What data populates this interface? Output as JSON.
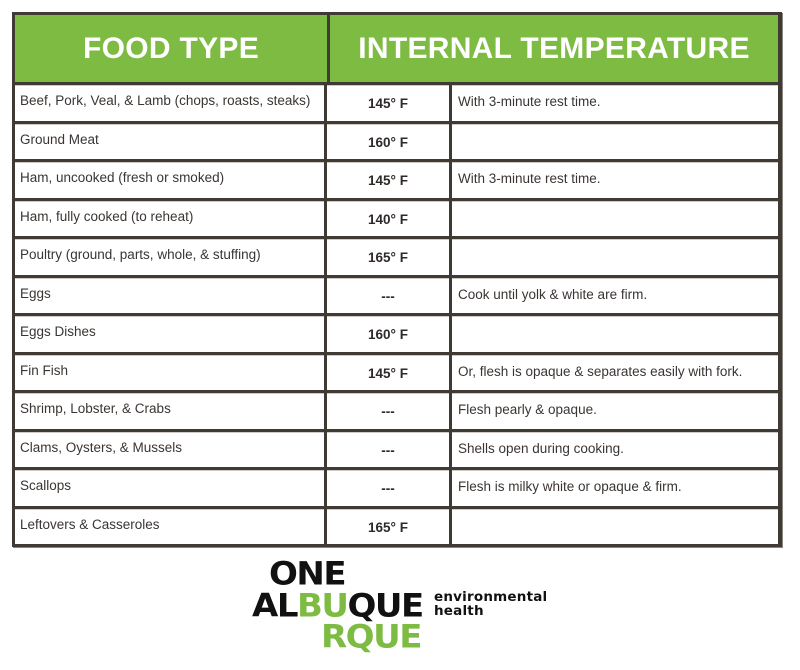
{
  "table": {
    "headers": {
      "food_type": "FOOD TYPE",
      "internal_temperature": "INTERNAL TEMPERATURE"
    },
    "rows": [
      {
        "food": "Beef, Pork, Veal, & Lamb (chops, roasts, steaks)",
        "temp": "145° F",
        "note": "With 3-minute rest time."
      },
      {
        "food": "Ground Meat",
        "temp": "160° F",
        "note": ""
      },
      {
        "food": "Ham, uncooked (fresh or smoked)",
        "temp": "145° F",
        "note": "With 3-minute rest time."
      },
      {
        "food": "Ham, fully cooked (to reheat)",
        "temp": "140° F",
        "note": ""
      },
      {
        "food": "Poultry (ground, parts, whole, & stuffing)",
        "temp": "165° F",
        "note": ""
      },
      {
        "food": "Eggs",
        "temp": "---",
        "note": "Cook until yolk & white are firm."
      },
      {
        "food": "Eggs Dishes",
        "temp": "160° F",
        "note": ""
      },
      {
        "food": "Fin Fish",
        "temp": "145° F",
        "note": "Or, flesh is opaque & separates easily with fork."
      },
      {
        "food": "Shrimp, Lobster, & Crabs",
        "temp": "---",
        "note": "Flesh pearly & opaque."
      },
      {
        "food": "Clams, Oysters, & Mussels",
        "temp": "---",
        "note": "Shells open during cooking."
      },
      {
        "food": "Scallops",
        "temp": "---",
        "note": "Flesh is milky white or opaque & firm."
      },
      {
        "food": "Leftovers & Casseroles",
        "temp": "165° F",
        "note": ""
      }
    ]
  },
  "logo": {
    "line1": "ONE",
    "line2_black_a": "AL",
    "line2_green": "BU",
    "line2_black_b": "QUE",
    "line3": "RQUE",
    "tagline_1": "environmental",
    "tagline_2": "health"
  },
  "colors": {
    "header_green": "#7dbb42",
    "border": "#403a35",
    "text": "#3a3532",
    "logo_black": "#111111",
    "logo_green": "#7dbb42"
  }
}
